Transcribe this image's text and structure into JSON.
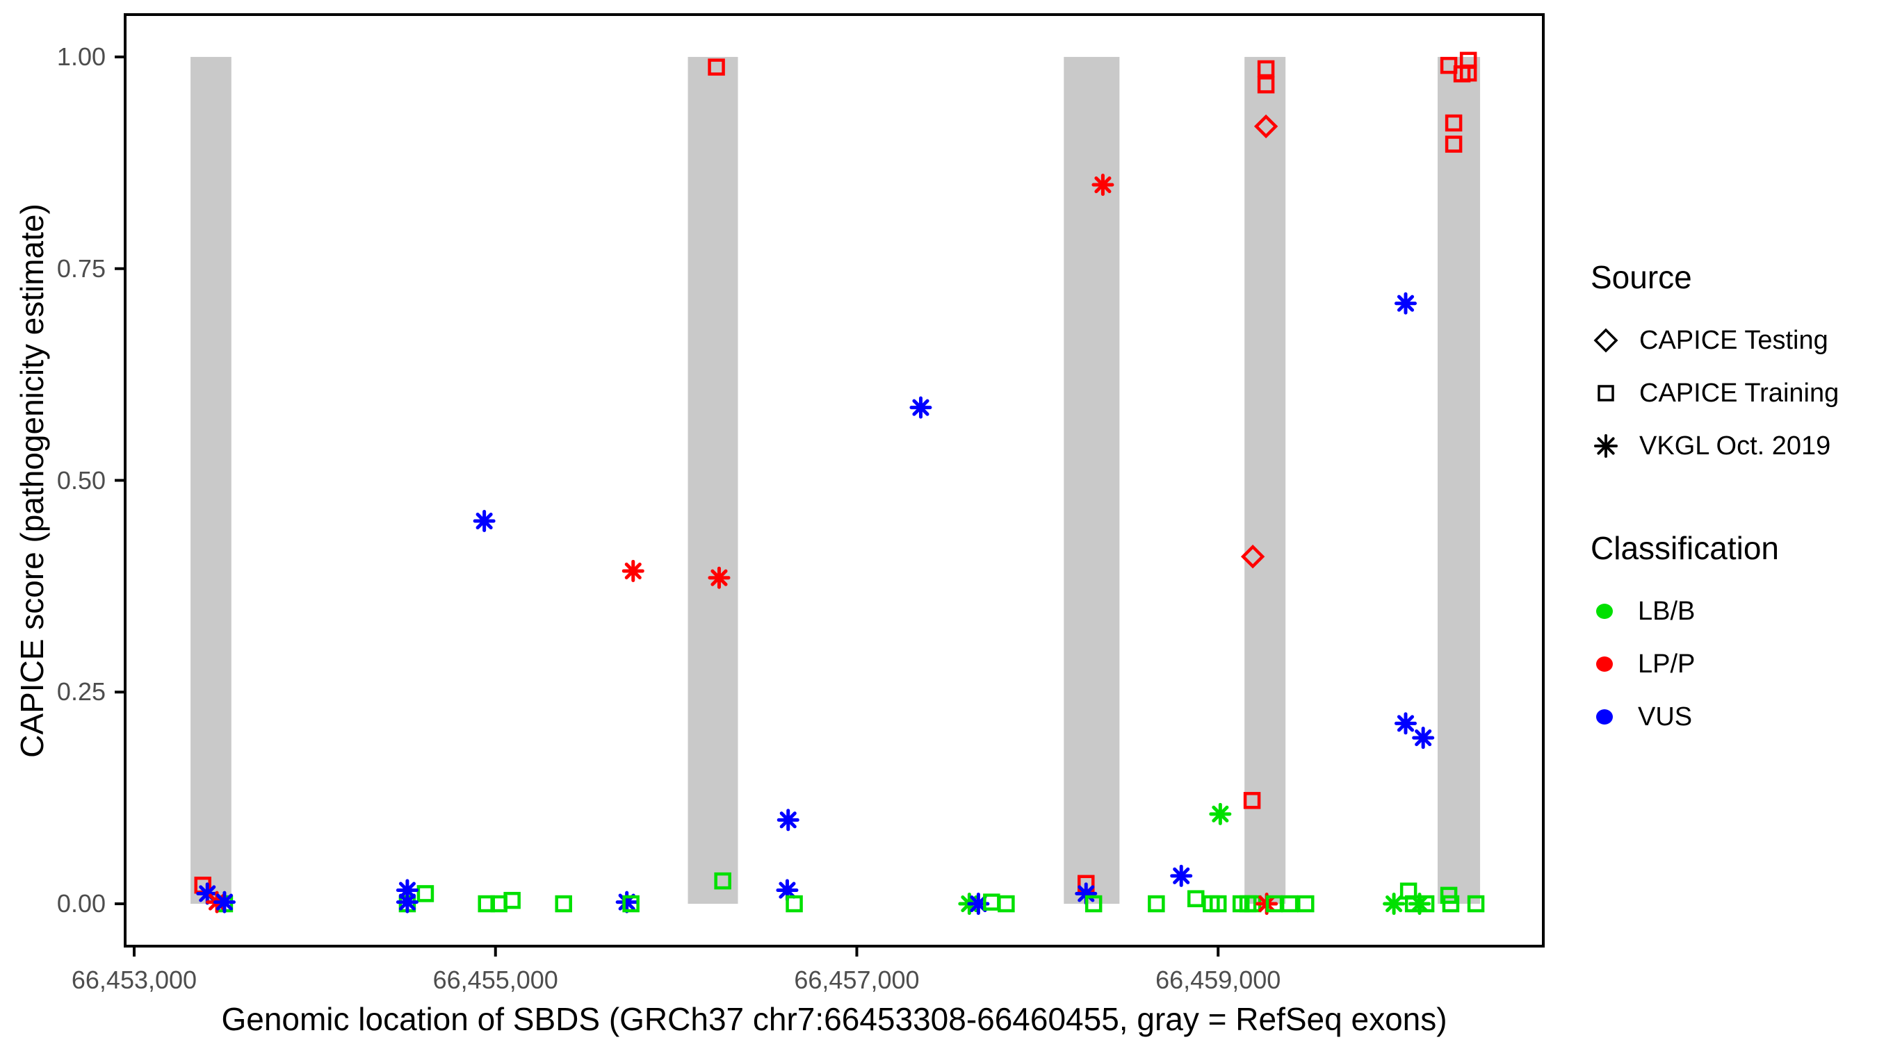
{
  "colors": {
    "LB/B": "#00E000",
    "LP/P": "#FF0000",
    "VUS": "#0000FF",
    "exon_gray": "#C9C9C9",
    "tick_text": "#4D4D4D"
  },
  "legend": {
    "source": {
      "title": "Source",
      "items": [
        {
          "shape": "diamond",
          "label": "CAPICE Testing"
        },
        {
          "shape": "square",
          "label": "CAPICE Training"
        },
        {
          "shape": "asterisk",
          "label": "VKGL Oct. 2019"
        }
      ]
    },
    "classification": {
      "title": "Classification",
      "items": [
        {
          "color": "#00E000",
          "label": "LB/B"
        },
        {
          "color": "#FF0000",
          "label": "LP/P"
        },
        {
          "color": "#0000FF",
          "label": "VUS"
        }
      ]
    }
  },
  "chart_data": {
    "type": "scatter",
    "xlabel": "Genomic location of SBDS (GRCh37 chr7:66453308-66460455, gray = RefSeq exons)",
    "ylabel": "CAPICE score (pathogenicity estimate)",
    "x_range": [
      66452950,
      66460800
    ],
    "y_range": [
      -0.05,
      1.05
    ],
    "grid": false,
    "legend_position": "right",
    "x_ticks": [
      {
        "bp": 66453000,
        "label": "66,453,000"
      },
      {
        "bp": 66455000,
        "label": "66,455,000"
      },
      {
        "bp": 66457000,
        "label": "66,457,000"
      },
      {
        "bp": 66459000,
        "label": "66,459,000"
      }
    ],
    "y_ticks": [
      {
        "value": 0.0,
        "label": "0.00"
      },
      {
        "value": 0.25,
        "label": "0.25"
      },
      {
        "value": 0.5,
        "label": "0.50"
      },
      {
        "value": 0.75,
        "label": "0.75"
      },
      {
        "value": 1.0,
        "label": "1.00"
      }
    ],
    "exons": [
      [
        66453312,
        66453538
      ],
      [
        66456065,
        66456342
      ],
      [
        66458146,
        66458454
      ],
      [
        66459146,
        66459373
      ],
      [
        66460215,
        66460450
      ]
    ],
    "points": [
      {
        "x": 66453380,
        "y": 0.022,
        "shape": "square",
        "cls": "LP/P"
      },
      {
        "x": 66453405,
        "y": 0.012,
        "shape": "asterisk",
        "cls": "VUS"
      },
      {
        "x": 66453500,
        "y": 0.0,
        "shape": "square",
        "cls": "LB/B"
      },
      {
        "x": 66453458,
        "y": 0.002,
        "shape": "asterisk",
        "cls": "LP/P"
      },
      {
        "x": 66453500,
        "y": 0.002,
        "shape": "asterisk",
        "cls": "VUS"
      },
      {
        "x": 66454512,
        "y": 0.0,
        "shape": "square",
        "cls": "LB/B"
      },
      {
        "x": 66454612,
        "y": 0.012,
        "shape": "square",
        "cls": "LB/B"
      },
      {
        "x": 66454512,
        "y": 0.016,
        "shape": "asterisk",
        "cls": "VUS"
      },
      {
        "x": 66454512,
        "y": 0.002,
        "shape": "asterisk",
        "cls": "VUS"
      },
      {
        "x": 66454938,
        "y": 0.452,
        "shape": "asterisk",
        "cls": "VUS"
      },
      {
        "x": 66454950,
        "y": 0.0,
        "shape": "square",
        "cls": "LB/B"
      },
      {
        "x": 66455019,
        "y": 0.0,
        "shape": "square",
        "cls": "LB/B"
      },
      {
        "x": 66455092,
        "y": 0.004,
        "shape": "square",
        "cls": "LB/B"
      },
      {
        "x": 66455377,
        "y": 0.0,
        "shape": "square",
        "cls": "LB/B"
      },
      {
        "x": 66455727,
        "y": 0.002,
        "shape": "asterisk",
        "cls": "VUS"
      },
      {
        "x": 66455750,
        "y": 0.0,
        "shape": "square",
        "cls": "LB/B"
      },
      {
        "x": 66455762,
        "y": 0.393,
        "shape": "asterisk",
        "cls": "LP/P"
      },
      {
        "x": 66456223,
        "y": 0.988,
        "shape": "square",
        "cls": "LP/P"
      },
      {
        "x": 66456238,
        "y": 0.385,
        "shape": "asterisk",
        "cls": "LP/P"
      },
      {
        "x": 66456258,
        "y": 0.027,
        "shape": "square",
        "cls": "LB/B"
      },
      {
        "x": 66456620,
        "y": 0.099,
        "shape": "asterisk",
        "cls": "VUS"
      },
      {
        "x": 66456615,
        "y": 0.016,
        "shape": "asterisk",
        "cls": "VUS"
      },
      {
        "x": 66456654,
        "y": 0.0,
        "shape": "square",
        "cls": "LB/B"
      },
      {
        "x": 66457354,
        "y": 0.586,
        "shape": "asterisk",
        "cls": "VUS"
      },
      {
        "x": 66457623,
        "y": 0.0,
        "shape": "asterisk",
        "cls": "LB/B"
      },
      {
        "x": 66457673,
        "y": 0.0,
        "shape": "asterisk",
        "cls": "VUS"
      },
      {
        "x": 66457746,
        "y": 0.002,
        "shape": "square",
        "cls": "LB/B"
      },
      {
        "x": 66457827,
        "y": 0.0,
        "shape": "square",
        "cls": "LB/B"
      },
      {
        "x": 66458269,
        "y": 0.024,
        "shape": "square",
        "cls": "LP/P"
      },
      {
        "x": 66458269,
        "y": 0.012,
        "shape": "asterisk",
        "cls": "VUS"
      },
      {
        "x": 66458311,
        "y": 0.0,
        "shape": "square",
        "cls": "LB/B"
      },
      {
        "x": 66458362,
        "y": 0.849,
        "shape": "asterisk",
        "cls": "LP/P"
      },
      {
        "x": 66458658,
        "y": 0.0,
        "shape": "square",
        "cls": "LB/B"
      },
      {
        "x": 66458796,
        "y": 0.033,
        "shape": "asterisk",
        "cls": "VUS"
      },
      {
        "x": 66458877,
        "y": 0.006,
        "shape": "square",
        "cls": "LB/B"
      },
      {
        "x": 66458962,
        "y": 0.0,
        "shape": "square",
        "cls": "LB/B"
      },
      {
        "x": 66459000,
        "y": 0.0,
        "shape": "square",
        "cls": "LB/B"
      },
      {
        "x": 66459012,
        "y": 0.106,
        "shape": "asterisk",
        "cls": "LB/B"
      },
      {
        "x": 66459127,
        "y": 0.0,
        "shape": "square",
        "cls": "LB/B"
      },
      {
        "x": 66459165,
        "y": 0.0,
        "shape": "square",
        "cls": "LB/B"
      },
      {
        "x": 66459192,
        "y": 0.0,
        "shape": "square",
        "cls": "LB/B"
      },
      {
        "x": 66459269,
        "y": 0.0,
        "shape": "asterisk",
        "cls": "LP/P"
      },
      {
        "x": 66459311,
        "y": 0.0,
        "shape": "square",
        "cls": "LB/B"
      },
      {
        "x": 66459396,
        "y": 0.0,
        "shape": "square",
        "cls": "LB/B"
      },
      {
        "x": 66459485,
        "y": 0.0,
        "shape": "square",
        "cls": "LB/B"
      },
      {
        "x": 66459188,
        "y": 0.122,
        "shape": "square",
        "cls": "LP/P"
      },
      {
        "x": 66459265,
        "y": 0.986,
        "shape": "square",
        "cls": "LP/P"
      },
      {
        "x": 66459265,
        "y": 0.967,
        "shape": "square",
        "cls": "LP/P"
      },
      {
        "x": 66459265,
        "y": 0.918,
        "shape": "diamond",
        "cls": "LP/P"
      },
      {
        "x": 66459192,
        "y": 0.41,
        "shape": "diamond",
        "cls": "LP/P"
      },
      {
        "x": 66460038,
        "y": 0.709,
        "shape": "asterisk",
        "cls": "VUS"
      },
      {
        "x": 66460038,
        "y": 0.213,
        "shape": "asterisk",
        "cls": "VUS"
      },
      {
        "x": 66460135,
        "y": 0.196,
        "shape": "asterisk",
        "cls": "VUS"
      },
      {
        "x": 66459973,
        "y": 0.0,
        "shape": "asterisk",
        "cls": "LB/B"
      },
      {
        "x": 66460054,
        "y": 0.015,
        "shape": "square",
        "cls": "LB/B"
      },
      {
        "x": 66460081,
        "y": 0.0,
        "shape": "square",
        "cls": "LB/B"
      },
      {
        "x": 66460115,
        "y": 0.0,
        "shape": "asterisk",
        "cls": "LB/B"
      },
      {
        "x": 66460150,
        "y": 0.0,
        "shape": "square",
        "cls": "LB/B"
      },
      {
        "x": 66460277,
        "y": 0.01,
        "shape": "square",
        "cls": "LB/B"
      },
      {
        "x": 66460288,
        "y": 0.0,
        "shape": "square",
        "cls": "LB/B"
      },
      {
        "x": 66460427,
        "y": 0.0,
        "shape": "square",
        "cls": "LB/B"
      },
      {
        "x": 66460277,
        "y": 0.99,
        "shape": "square",
        "cls": "LP/P"
      },
      {
        "x": 66460385,
        "y": 0.996,
        "shape": "square",
        "cls": "LP/P"
      },
      {
        "x": 66460350,
        "y": 0.98,
        "shape": "square",
        "cls": "LP/P"
      },
      {
        "x": 66460385,
        "y": 0.981,
        "shape": "square",
        "cls": "LP/P"
      },
      {
        "x": 66460304,
        "y": 0.922,
        "shape": "square",
        "cls": "LP/P"
      },
      {
        "x": 66460304,
        "y": 0.897,
        "shape": "square",
        "cls": "LP/P"
      }
    ]
  }
}
